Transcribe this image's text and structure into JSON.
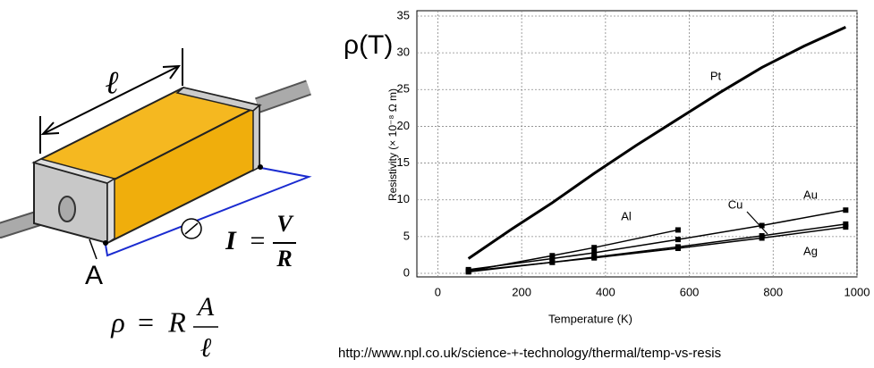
{
  "chart_data": {
    "type": "line",
    "title": "ρ(T)",
    "x_label": "Temperature (K)",
    "y_label": "Resistivity (× 10⁻⁸ Ω m)",
    "xlim": [
      -50,
      1000
    ],
    "xticks": [
      0,
      200,
      400,
      600,
      800,
      1000
    ],
    "ylim": [
      0,
      35
    ],
    "yticks": [
      0,
      5,
      10,
      15,
      20,
      25,
      30,
      35
    ],
    "grid": true,
    "series": [
      {
        "name": "Pt",
        "color": "#000000",
        "markers": false,
        "x": [
          73,
          173,
          273,
          373,
          473,
          573,
          673,
          773,
          873,
          973
        ],
        "values": [
          2,
          5.9,
          9.6,
          13.6,
          17.4,
          21,
          24.6,
          28,
          30.9,
          33.5
        ]
      },
      {
        "name": "Al",
        "color": "#000000",
        "markers": true,
        "x": [
          73,
          273,
          373,
          573
        ],
        "values": [
          0.3,
          2.4,
          3.5,
          5.9
        ]
      },
      {
        "name": "Cu",
        "color": "#000000",
        "markers": true,
        "x": [
          73,
          273,
          373,
          573,
          773,
          973
        ],
        "values": [
          0.2,
          1.5,
          2.2,
          3.6,
          5.1,
          6.7
        ]
      },
      {
        "name": "Au",
        "color": "#000000",
        "markers": true,
        "x": [
          73,
          273,
          373,
          573,
          773,
          973
        ],
        "values": [
          0.5,
          2,
          2.8,
          4.6,
          6.5,
          8.6
        ]
      },
      {
        "name": "Ag",
        "color": "#000000",
        "markers": true,
        "x": [
          73,
          273,
          373,
          573,
          773,
          973
        ],
        "values": [
          0.3,
          1.5,
          2.1,
          3.4,
          4.8,
          6.3
        ]
      }
    ]
  },
  "diagram": {
    "length_label": "ℓ",
    "area_label": "A",
    "current_formula": {
      "lhs": "I",
      "eq": "=",
      "num": "V",
      "den": "R"
    },
    "resistivity_formula": {
      "lhs": "ρ",
      "eq": "=",
      "factor": "R",
      "num": "A",
      "den": "ℓ"
    }
  },
  "source_url": "http://www.npl.co.uk/science-+-technology/thermal/temp-vs-resis"
}
